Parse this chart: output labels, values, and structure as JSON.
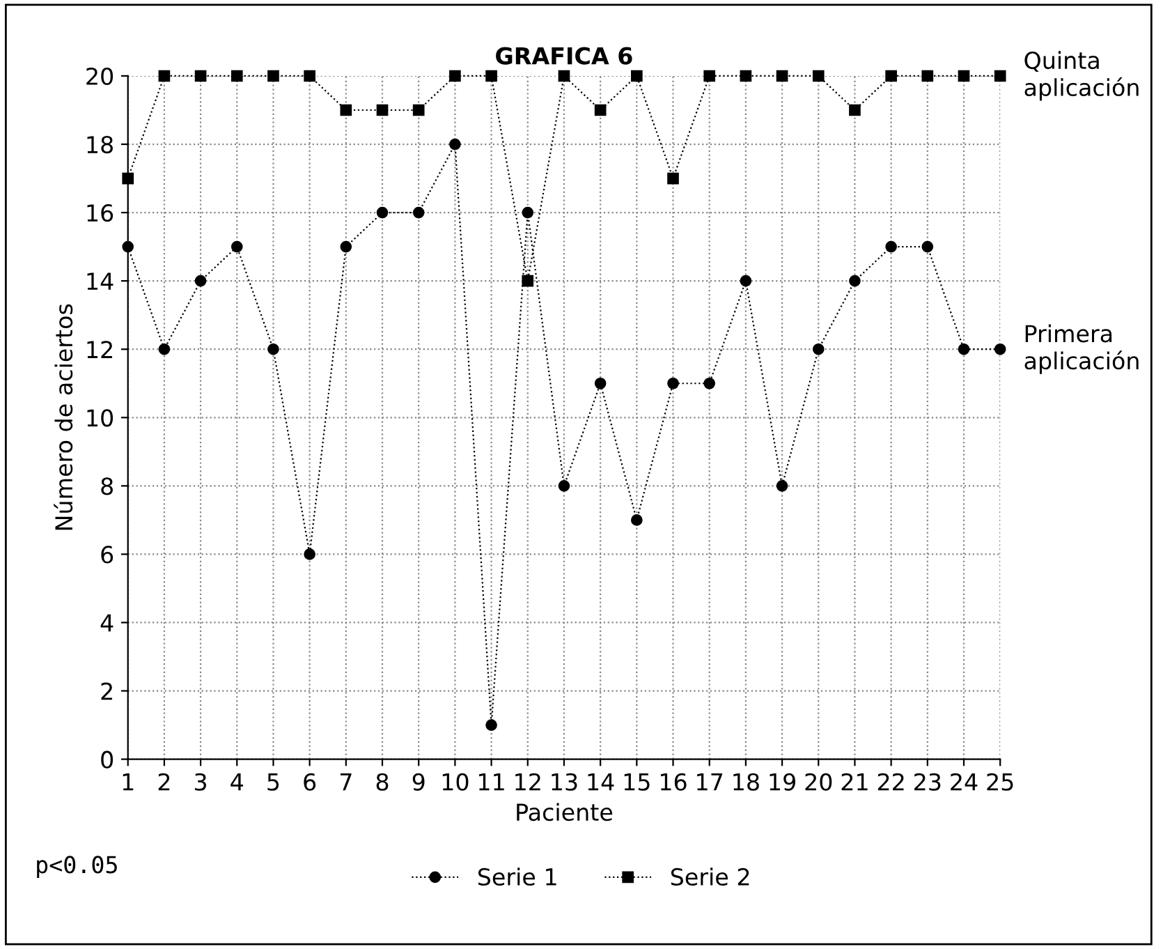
{
  "chart_data": {
    "type": "line",
    "title": "GRAFICA 6",
    "xlabel": "Paciente",
    "ylabel": "Número de aciertos",
    "x": [
      1,
      2,
      3,
      4,
      5,
      6,
      7,
      8,
      9,
      10,
      11,
      12,
      13,
      14,
      15,
      16,
      17,
      18,
      19,
      20,
      21,
      22,
      23,
      24,
      25
    ],
    "series": [
      {
        "name": "Serie 1",
        "color": "#000000",
        "marker": "circle",
        "values": [
          15,
          12,
          14,
          15,
          12,
          6,
          15,
          16,
          16,
          18,
          1,
          16,
          8,
          11,
          7,
          11,
          11,
          14,
          8,
          12,
          14,
          15,
          15,
          12,
          12
        ]
      },
      {
        "name": "Serie 2",
        "color": "#000000",
        "marker": "square",
        "values": [
          17,
          20,
          20,
          20,
          20,
          20,
          19,
          19,
          19,
          20,
          20,
          14,
          20,
          19,
          20,
          17,
          20,
          20,
          20,
          20,
          19,
          20,
          20,
          20,
          20
        ]
      }
    ],
    "xlim": [
      1,
      25
    ],
    "xticks": [
      1,
      2,
      3,
      4,
      5,
      6,
      7,
      8,
      9,
      10,
      11,
      12,
      13,
      14,
      15,
      16,
      17,
      18,
      19,
      20,
      21,
      22,
      23,
      24,
      25
    ],
    "ylim": [
      0,
      20
    ],
    "yticks": [
      0,
      2,
      4,
      6,
      8,
      10,
      12,
      14,
      16,
      18,
      20
    ],
    "grid": true,
    "legend": "bottom",
    "line_style": "dotted",
    "annotations": [
      {
        "text": "Quinta aplicación",
        "x": 25,
        "y": 20
      },
      {
        "text": "Primera aplicación",
        "x": 25,
        "y": 12
      },
      "p<0.05"
    ]
  }
}
